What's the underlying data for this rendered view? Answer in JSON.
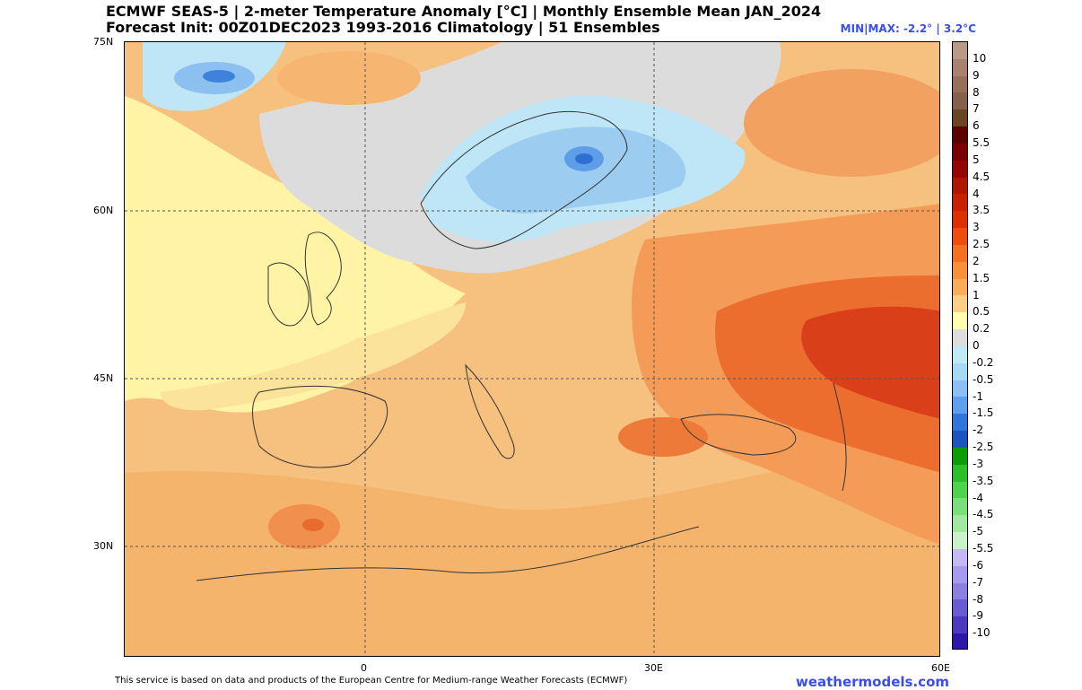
{
  "header": {
    "title_line1": "ECMWF SEAS-5 | 2-meter Temperature Anomaly [°C] | Monthly Ensemble Mean JAN_2024",
    "title_line2": "Forecast Init: 00Z01DEC2023     1993-2016 Climatology | 51 Ensembles",
    "minmax": "MIN|MAX: -2.2° | 3.2°C"
  },
  "map": {
    "lat_labels": [
      "75N",
      "60N",
      "45N",
      "30N"
    ],
    "lon_labels": [
      "0",
      "30E",
      "60E"
    ],
    "colors": {
      "ocean_neutral": "#d9d9d9",
      "light_yellow": "#fff7a8",
      "pale_orange": "#f8c989",
      "light_orange": "#f6b877",
      "orange": "#f39a55",
      "dark_orange": "#ea6a2a",
      "red": "#d83a18",
      "light_blue": "#bfe6f6",
      "blue": "#9ccdf1",
      "mid_blue": "#78b3ee",
      "deep_blue": "#2e7ed8"
    }
  },
  "colorbar": {
    "labels": [
      "10",
      "9",
      "8",
      "7",
      "6",
      "5.5",
      "5",
      "4.5",
      "4",
      "3.5",
      "3",
      "2.5",
      "2",
      "1.5",
      "1",
      "0.5",
      "0.2",
      "0",
      "-0.2",
      "-0.5",
      "-1",
      "-1.5",
      "-2",
      "-2.5",
      "-3",
      "-3.5",
      "-4",
      "-4.5",
      "-5",
      "-5.5",
      "-6",
      "-7",
      "-8",
      "-9",
      "-10"
    ],
    "colors": [
      "#b89a87",
      "#a8826c",
      "#97705a",
      "#85604a",
      "#6b4422",
      "#5c0000",
      "#7a0000",
      "#960600",
      "#b01500",
      "#c82000",
      "#dd2f00",
      "#ee4d0e",
      "#f5701f",
      "#f9913b",
      "#fbac5b",
      "#fdcf86",
      "#ffffb0",
      "#dddddd",
      "#bfeaf5",
      "#a6d8f7",
      "#8ac0f5",
      "#5f9ff0",
      "#2e75dc",
      "#1a55c0",
      "#0a9d0a",
      "#2cbf2c",
      "#4dd44d",
      "#78e078",
      "#a0eaa0",
      "#c8f3c8",
      "#c6b7f5",
      "#a89aee",
      "#8c7fe2",
      "#6b5bd3",
      "#4d38c2",
      "#2a19a8"
    ]
  },
  "footer": {
    "attribution": "This service is based on data and products of the European Centre for Medium-range Weather Forecasts (ECMWF)",
    "brand": "weathermodels.com"
  }
}
